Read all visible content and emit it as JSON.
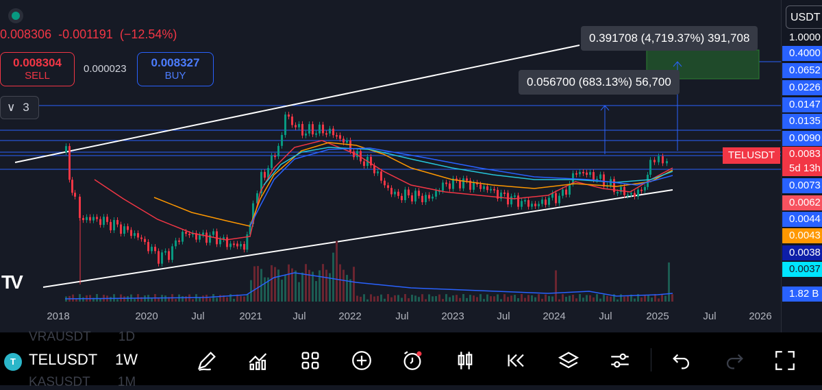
{
  "header": {
    "last_price": "0.008306",
    "change": "-0.001191",
    "change_pct": "(−12.54%)",
    "sell_price": "0.008304",
    "sell_label": "SELL",
    "spread": "0.000023",
    "buy_price": "0.008327",
    "buy_label": "BUY",
    "collapse_count": "3",
    "collapse_icon": "chevron-down"
  },
  "price_axis": {
    "currency": "USDT",
    "labels": [
      {
        "text": "1.0000",
        "color": "#ffffff",
        "bg": "transparent"
      },
      {
        "text": "0.4000",
        "color": "#ffffff",
        "bg": "#2962ff"
      },
      {
        "text": "0.0652",
        "color": "#ffffff",
        "bg": "#2962ff"
      },
      {
        "text": "0.0226",
        "color": "#ffffff",
        "bg": "#2962ff"
      },
      {
        "text": "0.0147",
        "color": "#ffffff",
        "bg": "#2962ff"
      },
      {
        "text": "0.0135",
        "color": "#ffffff",
        "bg": "#2962ff"
      },
      {
        "text": "0.0090",
        "color": "#ffffff",
        "bg": "#2962ff"
      },
      {
        "text": "0.0083",
        "color": "#ffffff",
        "bg": "#f23645"
      },
      {
        "text": "5d 13h",
        "color": "#ffffff",
        "bg": "#f23645"
      },
      {
        "text": "0.0073",
        "color": "#ffffff",
        "bg": "#2962ff"
      },
      {
        "text": "0.0062",
        "color": "#ffffff",
        "bg": "#f7525f"
      },
      {
        "text": "0.0044",
        "color": "#ffffff",
        "bg": "#2962ff"
      },
      {
        "text": "0.0043",
        "color": "#ffffff",
        "bg": "#ff9800"
      },
      {
        "text": "0.0038",
        "color": "#ffffff",
        "bg": "#0d1ea8"
      },
      {
        "text": "0.0037",
        "color": "#131722",
        "bg": "#00e5ff"
      },
      {
        "text": "1.82 B",
        "color": "#ffffff",
        "bg": "#2962ff"
      }
    ]
  },
  "time_axis": [
    "2018",
    "2020",
    "Jul",
    "2021",
    "Jul",
    "2022",
    "Jul",
    "2023",
    "Jul",
    "2024",
    "Jul",
    "2025",
    "Jul",
    "2026"
  ],
  "measurements": [
    {
      "text": "0.391708 (4,719.37%) 391,708"
    },
    {
      "text": "0.056700 (683.13%) 56,700"
    }
  ],
  "symbol_tag": "TELUSDT",
  "logo": "TV",
  "bottom_bar": {
    "symbol": "TELUSDT",
    "symbol_icon": "T",
    "interval": "1W",
    "ghost_above": "VRAUSDT",
    "ghost_above_interval": "1D",
    "ghost_below": "KASUSDT",
    "ghost_below_interval": "1M",
    "tools": [
      "pen-icon",
      "indicators-icon",
      "apps-grid-icon",
      "add-circle-icon",
      "alert-clock-icon",
      "candles-icon",
      "rewind-icon",
      "layers-icon",
      "settings-sliders-icon",
      "undo-icon",
      "redo-icon",
      "fullscreen-icon"
    ]
  }
}
